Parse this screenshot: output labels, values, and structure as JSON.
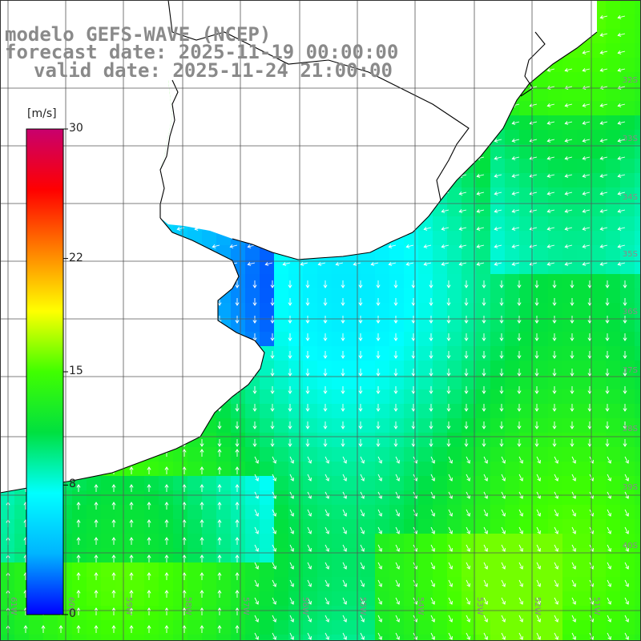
{
  "header": {
    "line1": "modelo GEFS-WAVE (NCEP)",
    "line2": "forecast date: 2025-11-19 00:00:00",
    "line3": "valid date: 2025-11-24 21:00:00"
  },
  "colorbar": {
    "unit": "[m/s]",
    "ticks": [
      {
        "label": "30",
        "value": 30
      },
      {
        "label": "22",
        "value": 22
      },
      {
        "label": "15",
        "value": 15
      },
      {
        "label": "8",
        "value": 8
      },
      {
        "label": "0",
        "value": 0
      }
    ],
    "stops": [
      "#0000ff",
      "#00b4ff",
      "#00ffff",
      "#00e040",
      "#40ff00",
      "#ffff00",
      "#ff8000",
      "#ff0000",
      "#c8006e"
    ]
  },
  "lat_labels": [
    "32S",
    "33S",
    "34S",
    "35S",
    "36S",
    "37S",
    "38S",
    "39S",
    "40S"
  ],
  "lon_labels": [
    "61W",
    "60W",
    "59W",
    "58W",
    "57W",
    "56W",
    "55W",
    "54W",
    "53W",
    "52W",
    "51W"
  ],
  "colors": {
    "land": "#ffffff",
    "coast": "#000000",
    "grid": "#555555",
    "arrows": "#ffffff",
    "labels": "#8a8a8a"
  }
}
